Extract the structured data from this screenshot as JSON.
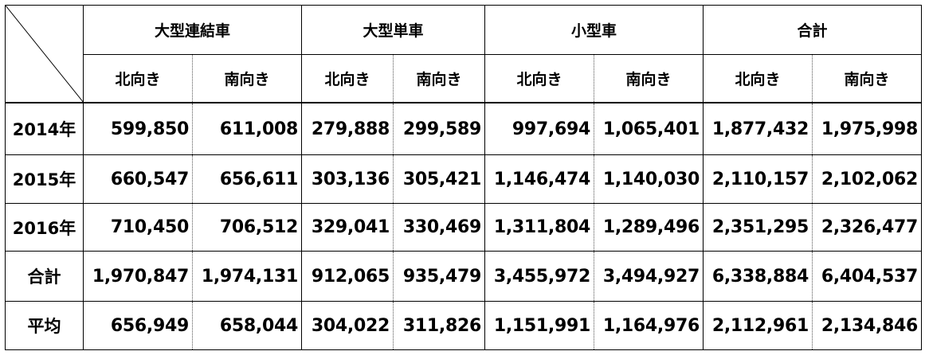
{
  "categories": [
    "大型連結車",
    "大型単車",
    "小型車",
    "合計"
  ],
  "directions": [
    "北向き",
    "南向き"
  ],
  "rows": [
    {
      "label": "2014年",
      "values": [
        "599,850",
        "611,008",
        "279,888",
        "299,589",
        "997,694",
        "1,065,401",
        "1,877,432",
        "1,975,998"
      ]
    },
    {
      "label": "2015年",
      "values": [
        "660,547",
        "656,611",
        "303,136",
        "305,421",
        "1,146,474",
        "1,140,030",
        "2,110,157",
        "2,102,062"
      ]
    },
    {
      "label": "2016年",
      "values": [
        "710,450",
        "706,512",
        "329,041",
        "330,469",
        "1,311,804",
        "1,289,496",
        "2,351,295",
        "2,326,477"
      ]
    },
    {
      "label": "合計",
      "values": [
        "1,970,847",
        "1,974,131",
        "912,065",
        "935,479",
        "3,455,972",
        "3,494,927",
        "6,338,884",
        "6,404,537"
      ]
    },
    {
      "label": "平均",
      "values": [
        "656,949",
        "658,044",
        "304,022",
        "311,826",
        "1,151,991",
        "1,164,976",
        "2,112,961",
        "2,134,846"
      ]
    }
  ]
}
